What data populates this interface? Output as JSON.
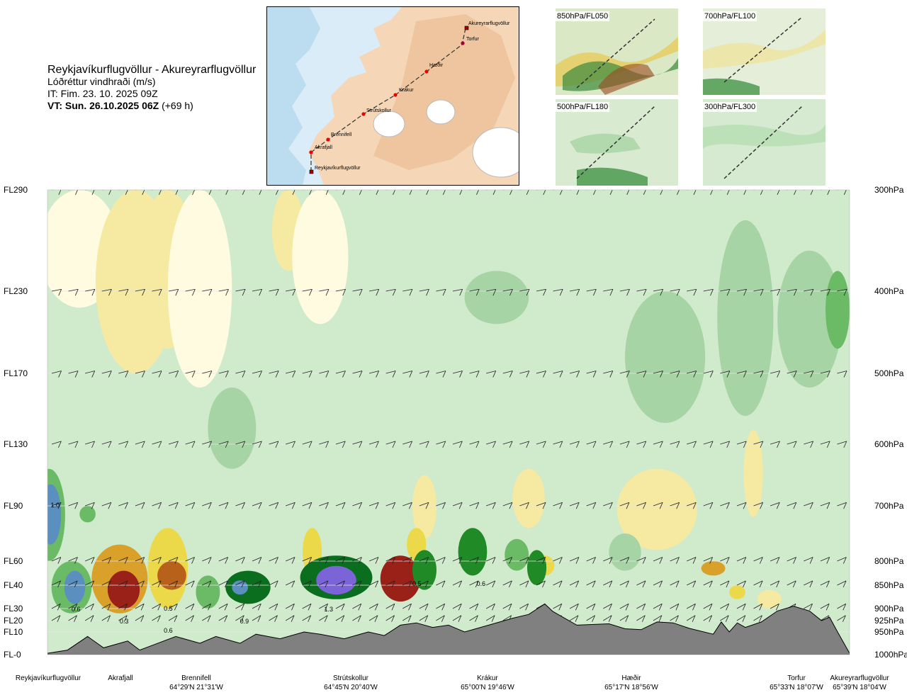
{
  "header": {
    "route": "Reykjavíkurflugvöllur - Akureyrarflugvöllur",
    "subtitle": "Lóðréttur vindhraði (m/s)",
    "issue_time": "IT: Fim. 23. 10. 2025 09Z",
    "valid_prefix": "VT: Sun. 26.10.2025 06Z",
    "valid_suffix": "(+69 h)"
  },
  "map": {
    "places": [
      "Akureyrarflugvöllur",
      "Torfur",
      "Hæðir",
      "Krákur",
      "Strútskollur",
      "Brennifell",
      "Akrafjall",
      "Reykjavíkurflugvöllur"
    ]
  },
  "thumbnails": [
    "850hPa/FL050",
    "700hPa/FL100",
    "500hPa/FL180",
    "300hPa/FL300"
  ],
  "colors": {
    "terrain": "#808080",
    "neg_light": "#fffbe0",
    "neg_1": "#f6e9a2",
    "neg_2": "#ecd94a",
    "neg_3": "#d9a12a",
    "neg_4": "#b8611a",
    "neg_5": "#9a2118",
    "pos_1": "#cfebcc",
    "pos_2": "#a7d4a4",
    "pos_3": "#6bbb66",
    "pos_4": "#1f8a26",
    "pos_5": "#0a6e1e",
    "pos_6": "#5a8fc0",
    "pos_7": "#7b63d8"
  },
  "chart_data": {
    "type": "heatmap",
    "title": "Lóðréttur vindhraði (m/s)",
    "y_left_labels": [
      "FL290",
      "FL230",
      "FL170",
      "FL130",
      "FL90",
      "FL60",
      "FL40",
      "FL30",
      "FL20",
      "FL10",
      "FL-0"
    ],
    "y_right_labels": [
      "300hPa",
      "400hPa",
      "500hPa",
      "600hPa",
      "700hPa",
      "800hPa",
      "850hPa",
      "900hPa",
      "925hPa",
      "950hPa",
      "1000hPa"
    ],
    "y_pressure_hpa": [
      300,
      400,
      500,
      600,
      700,
      800,
      850,
      900,
      925,
      950,
      1000
    ],
    "x_locations": [
      {
        "name": "Reykjavíkurflugvöllur",
        "coord": ""
      },
      {
        "name": "Akrafjall",
        "coord": ""
      },
      {
        "name": "Brennifell",
        "coord": "64°29'N 21°31'W"
      },
      {
        "name": "Strútskollur",
        "coord": "64°45'N 20°40'W"
      },
      {
        "name": "Krákur",
        "coord": "65°00'N 19°46'W"
      },
      {
        "name": "Hæðir",
        "coord": "65°17'N 18°56'W"
      },
      {
        "name": "Torfur",
        "coord": "65°33'N 18°07'W"
      },
      {
        "name": "Akureyrarflugvöllur",
        "coord": "65°39'N 18°04'W"
      }
    ],
    "value_labels": [
      "1.0",
      "0.6",
      "0.3",
      "0.5",
      "0.6",
      "0.9",
      "1.3",
      "0.5",
      "0.6"
    ],
    "terrain_hpa": [
      [
        0.0,
        997
      ],
      [
        0.025,
        990
      ],
      [
        0.05,
        960
      ],
      [
        0.07,
        985
      ],
      [
        0.09,
        975
      ],
      [
        0.1,
        970
      ],
      [
        0.115,
        990
      ],
      [
        0.13,
        980
      ],
      [
        0.16,
        960
      ],
      [
        0.19,
        975
      ],
      [
        0.21,
        960
      ],
      [
        0.24,
        975
      ],
      [
        0.26,
        955
      ],
      [
        0.29,
        965
      ],
      [
        0.32,
        950
      ],
      [
        0.34,
        955
      ],
      [
        0.37,
        965
      ],
      [
        0.4,
        950
      ],
      [
        0.42,
        958
      ],
      [
        0.44,
        935
      ],
      [
        0.46,
        930
      ],
      [
        0.48,
        940
      ],
      [
        0.5,
        935
      ],
      [
        0.52,
        950
      ],
      [
        0.55,
        935
      ],
      [
        0.58,
        920
      ],
      [
        0.6,
        912
      ],
      [
        0.62,
        890
      ],
      [
        0.63,
        906
      ],
      [
        0.66,
        935
      ],
      [
        0.7,
        932
      ],
      [
        0.72,
        943
      ],
      [
        0.74,
        945
      ],
      [
        0.76,
        928
      ],
      [
        0.78,
        930
      ],
      [
        0.8,
        942
      ],
      [
        0.83,
        955
      ],
      [
        0.84,
        928
      ],
      [
        0.85,
        950
      ],
      [
        0.86,
        930
      ],
      [
        0.87,
        940
      ],
      [
        0.89,
        928
      ],
      [
        0.91,
        905
      ],
      [
        0.93,
        895
      ],
      [
        0.95,
        905
      ],
      [
        0.965,
        925
      ],
      [
        0.975,
        918
      ],
      [
        0.985,
        950
      ],
      [
        1.0,
        997
      ]
    ],
    "legend": "none"
  }
}
